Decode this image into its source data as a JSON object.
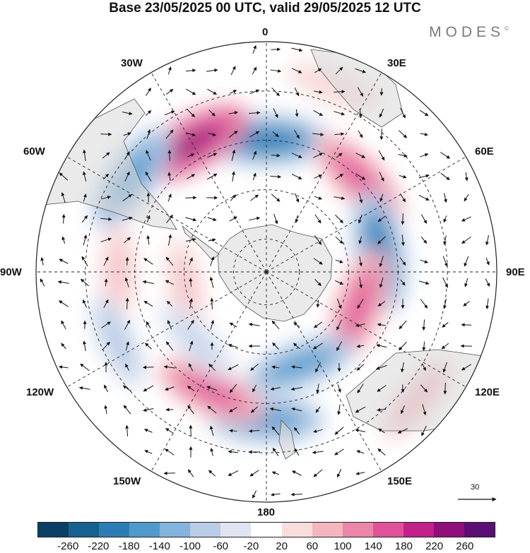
{
  "header": {
    "title": "Base 23/05/2025 00 UTC, valid 29/05/2025 12 UTC",
    "brand": "MODES",
    "brand_mark": "©"
  },
  "longitude_labels": [
    "0",
    "30E",
    "60E",
    "90E",
    "120E",
    "150E",
    "180",
    "150W",
    "120W",
    "90W",
    "60W",
    "30W"
  ],
  "vector_reference": {
    "value": "30"
  },
  "colorbar": {
    "ticks": [
      "-260",
      "-220",
      "-180",
      "-140",
      "-100",
      "-60",
      "-20",
      "20",
      "60",
      "100",
      "140",
      "180",
      "220",
      "260"
    ],
    "colors": [
      "#0b3f63",
      "#15618f",
      "#2c7db5",
      "#4f9acb",
      "#84b3db",
      "#b9cde6",
      "#dfe4f1",
      "#ffffff",
      "#f9dcdc",
      "#f3b6be",
      "#ea86a8",
      "#df529a",
      "#c2208a",
      "#8f0f7b",
      "#5b0e73"
    ]
  },
  "map_layers": {
    "anomalies": [
      {
        "lon": 0,
        "lat": -50,
        "value": -240
      },
      {
        "lon": -30,
        "lat": -45,
        "value": 250
      },
      {
        "lon": -55,
        "lat": -40,
        "value": -200
      },
      {
        "lon": 45,
        "lat": -50,
        "value": 180
      },
      {
        "lon": 80,
        "lat": -55,
        "value": -230
      },
      {
        "lon": 110,
        "lat": -60,
        "value": 190
      },
      {
        "lon": 160,
        "lat": -60,
        "value": -160
      },
      {
        "lon": 180,
        "lat": -45,
        "value": -180
      },
      {
        "lon": -155,
        "lat": -50,
        "value": 170
      },
      {
        "lon": -90,
        "lat": -45,
        "value": 80
      },
      {
        "lon": -100,
        "lat": -65,
        "value": 70
      },
      {
        "lon": -115,
        "lat": -40,
        "value": -90
      },
      {
        "lon": -135,
        "lat": -60,
        "value": -80
      },
      {
        "lon": 20,
        "lat": -30,
        "value": 60
      },
      {
        "lon": 130,
        "lat": -30,
        "value": 90
      }
    ]
  }
}
